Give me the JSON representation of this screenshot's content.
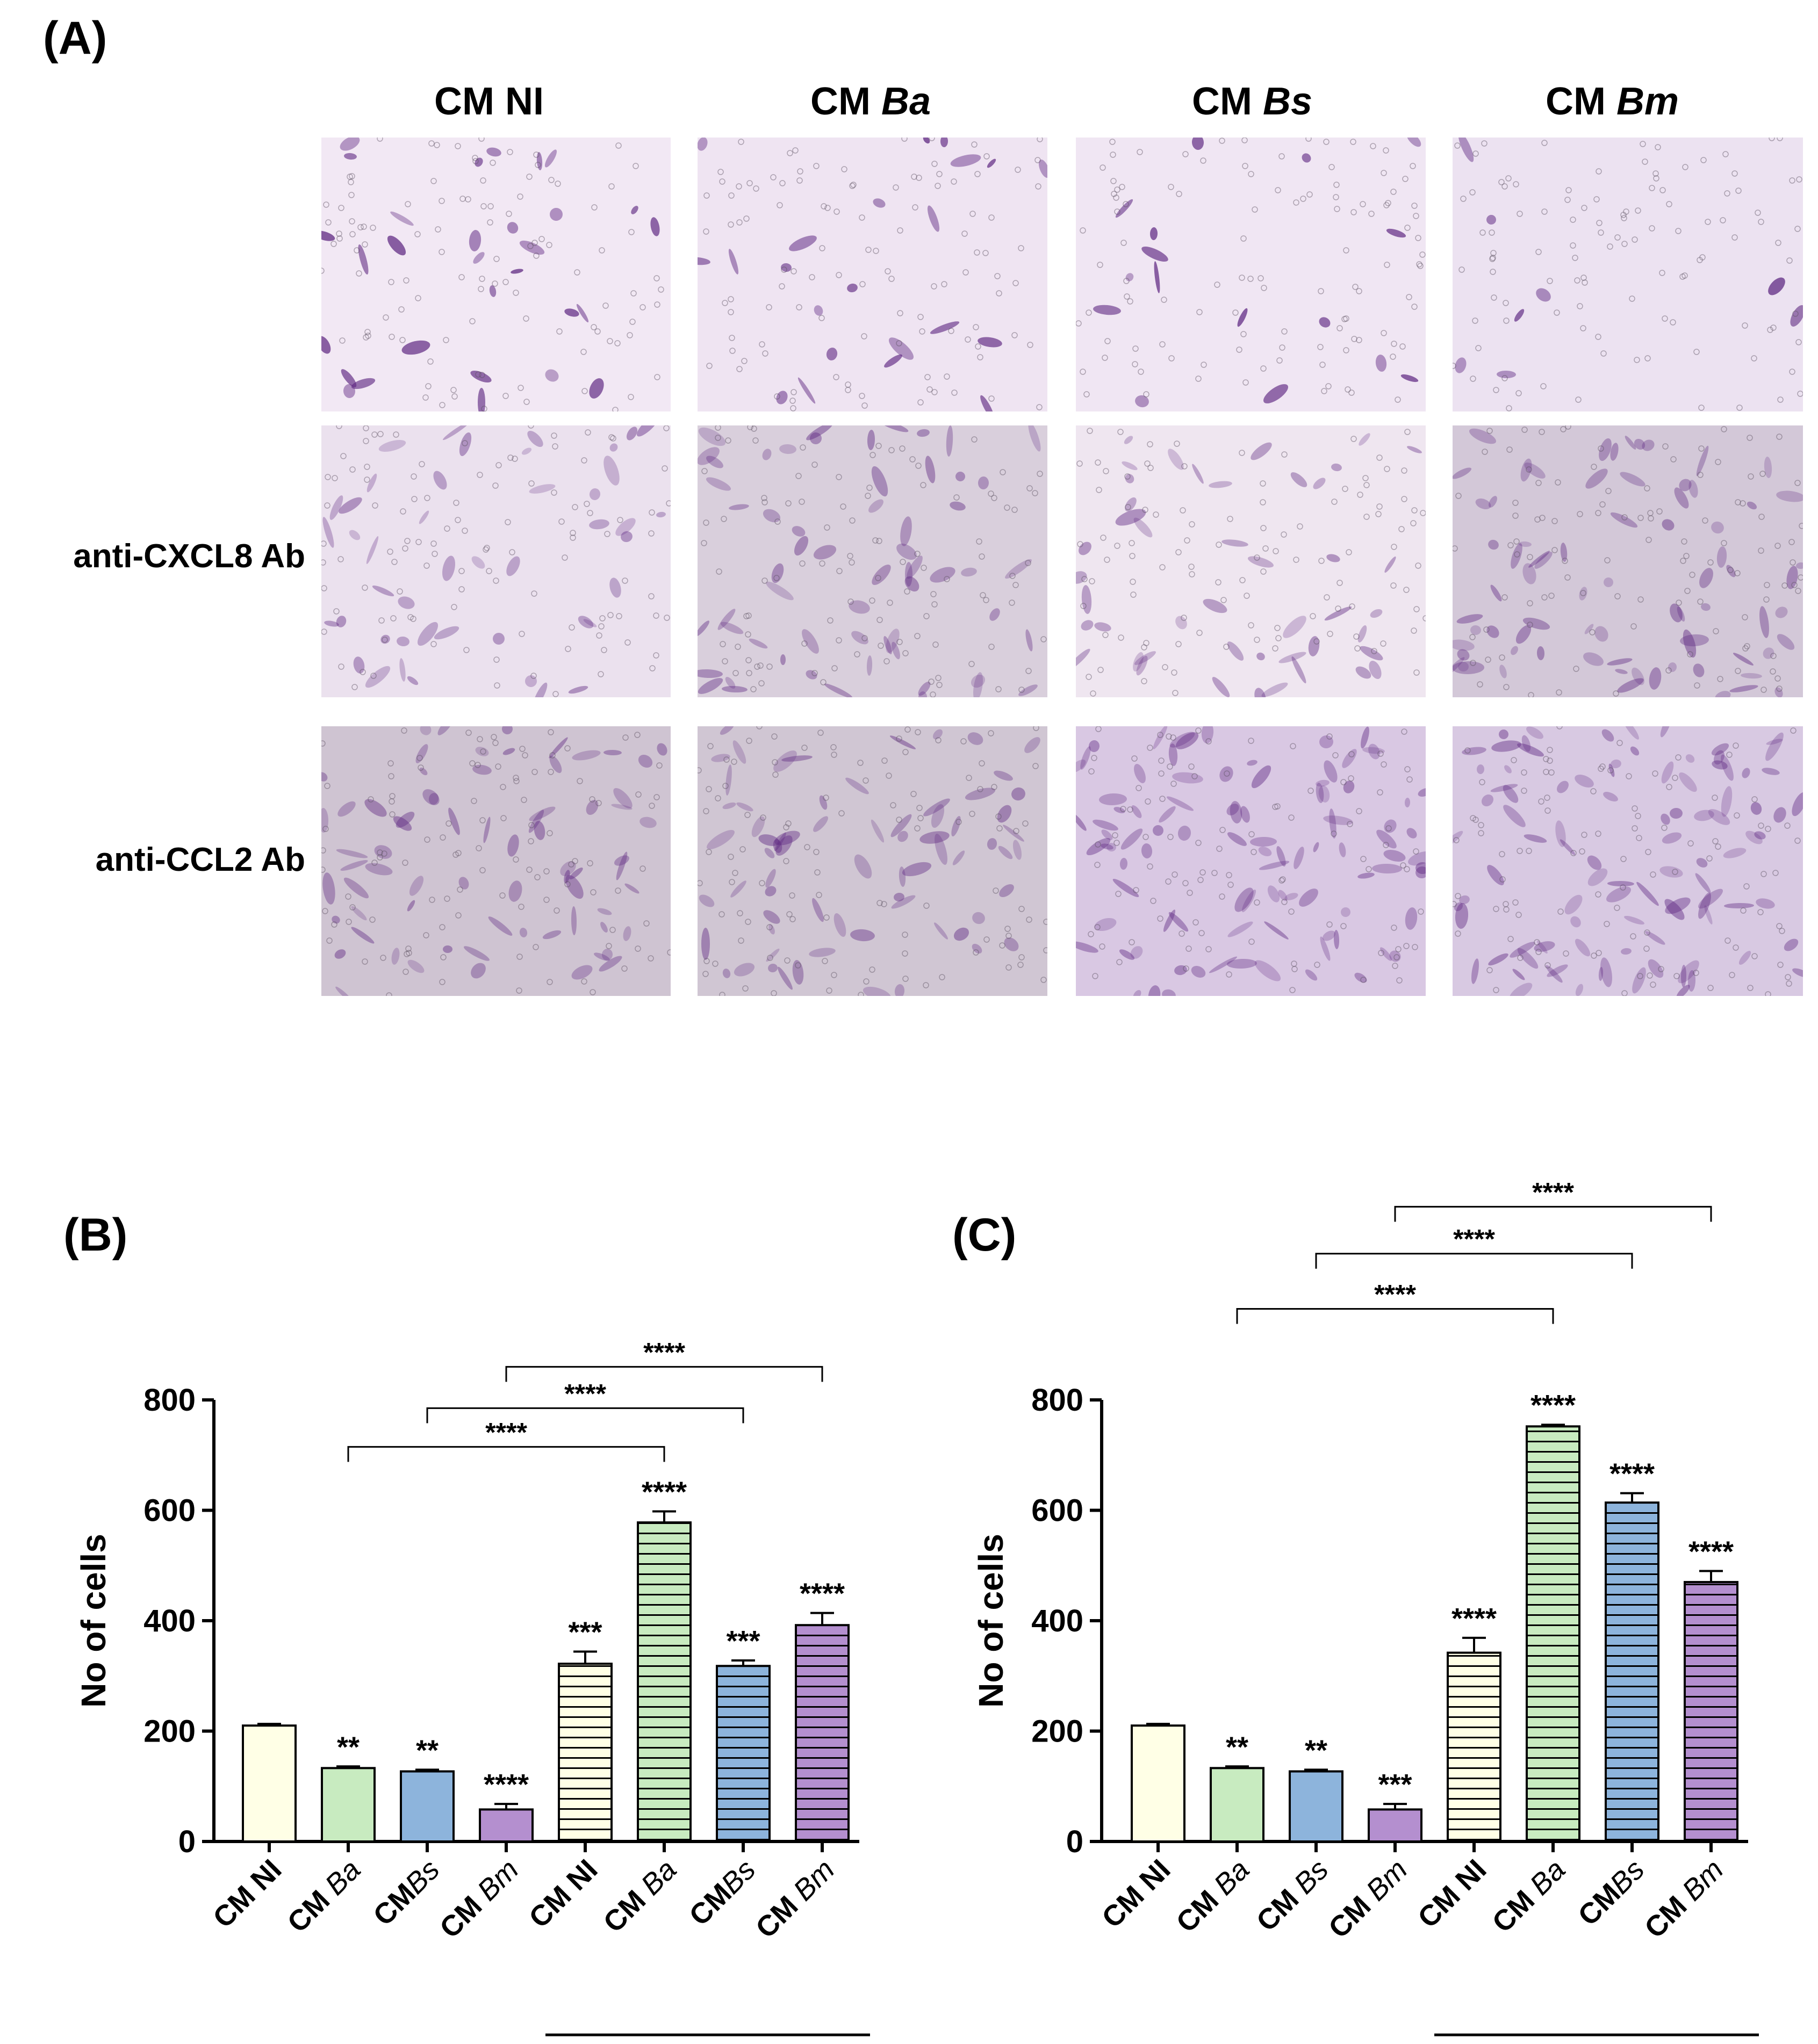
{
  "panel_a": {
    "label": "(A)",
    "columns": [
      {
        "prefix": "CM ",
        "name": "NI",
        "italic": false
      },
      {
        "prefix": "CM ",
        "name": "Ba",
        "italic": true
      },
      {
        "prefix": "CM ",
        "name": "Bs",
        "italic": true
      },
      {
        "prefix": "CM ",
        "name": "Bm",
        "italic": true
      }
    ],
    "rows": [
      "",
      "anti-CXCL8 Ab",
      "anti-CCL2 Ab"
    ],
    "image_tones": [
      [
        "#f2e8f4",
        "#efe4f2",
        "#f0e6f3",
        "#ece2f1"
      ],
      [
        "#ebe1ee",
        "#d9cfdc",
        "#efe6f0",
        "#d3c8d8"
      ],
      [
        "#cfc4d2",
        "#d0c6d3",
        "#d9c8e3",
        "#d8c9e2"
      ]
    ]
  },
  "chart_data": [
    {
      "type": "bar",
      "label": "(B)",
      "title": "",
      "ylabel": "No of cells",
      "xlabel": "",
      "ylim": [
        0,
        800
      ],
      "yticks": [
        0,
        200,
        400,
        600,
        800
      ],
      "categories": [
        {
          "prefix": "CM ",
          "name": "NI",
          "italic": false
        },
        {
          "prefix": "CM ",
          "name": "Ba",
          "italic": true
        },
        {
          "prefix": "CM",
          "name": "Bs",
          "italic": true
        },
        {
          "prefix": "CM ",
          "name": "Bm",
          "italic": true
        },
        {
          "prefix": "CM ",
          "name": "NI",
          "italic": false
        },
        {
          "prefix": "CM ",
          "name": "Ba",
          "italic": true
        },
        {
          "prefix": "CM",
          "name": "Bs",
          "italic": true
        },
        {
          "prefix": "CM ",
          "name": "Bm",
          "italic": true
        }
      ],
      "values": [
        210,
        133,
        127,
        58,
        322,
        578,
        318,
        392
      ],
      "errors": [
        3,
        3,
        3,
        10,
        22,
        20,
        10,
        22
      ],
      "significance": [
        "",
        "**",
        "**",
        "****",
        "***",
        "****",
        "***",
        "****"
      ],
      "fill_colors": [
        "#ffffe6",
        "#c8ebc0",
        "#8db4dc",
        "#b48fcf",
        "#ffffe6",
        "#c8ebc0",
        "#8db4dc",
        "#b48fcf"
      ],
      "hatched": [
        false,
        false,
        false,
        false,
        true,
        true,
        true,
        true
      ],
      "brackets": [
        {
          "from": 1,
          "to": 5,
          "level": 715,
          "label": "****"
        },
        {
          "from": 2,
          "to": 6,
          "level": 785,
          "label": "****"
        },
        {
          "from": 3,
          "to": 7,
          "level": 860,
          "label": "****"
        }
      ],
      "group_label": {
        "text": "anti-CXCL8  Ab",
        "from": 4,
        "to": 7
      }
    },
    {
      "type": "bar",
      "label": "(C)",
      "title": "",
      "ylabel": "No of cells",
      "xlabel": "",
      "ylim": [
        0,
        800
      ],
      "yticks": [
        0,
        200,
        400,
        600,
        800
      ],
      "categories": [
        {
          "prefix": "CM ",
          "name": "NI",
          "italic": false
        },
        {
          "prefix": "CM ",
          "name": "Ba",
          "italic": true
        },
        {
          "prefix": "CM ",
          "name": "Bs",
          "italic": true
        },
        {
          "prefix": "CM ",
          "name": "Bm",
          "italic": true
        },
        {
          "prefix": "CM ",
          "name": "NI",
          "italic": false
        },
        {
          "prefix": "CM ",
          "name": "Ba",
          "italic": true
        },
        {
          "prefix": "CM",
          "name": "Bs",
          "italic": true
        },
        {
          "prefix": "CM ",
          "name": "Bm",
          "italic": true
        }
      ],
      "values": [
        210,
        133,
        127,
        58,
        342,
        752,
        614,
        470
      ],
      "errors": [
        3,
        3,
        3,
        10,
        27,
        3,
        17,
        20
      ],
      "significance": [
        "",
        "**",
        "**",
        "***",
        "****",
        "****",
        "****",
        "****"
      ],
      "fill_colors": [
        "#ffffe6",
        "#c8ebc0",
        "#8db4dc",
        "#b48fcf",
        "#ffffe6",
        "#c8ebc0",
        "#8db4dc",
        "#b48fcf"
      ],
      "hatched": [
        false,
        false,
        false,
        false,
        true,
        true,
        true,
        true
      ],
      "brackets": [
        {
          "from": 1,
          "to": 5,
          "level": 965,
          "label": "****"
        },
        {
          "from": 2,
          "to": 6,
          "level": 1065,
          "label": "****"
        },
        {
          "from": 3,
          "to": 7,
          "level": 1150,
          "label": "****"
        }
      ],
      "group_label": {
        "text": "anti-CCL2 Ab",
        "from": 4,
        "to": 7
      }
    }
  ]
}
